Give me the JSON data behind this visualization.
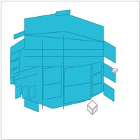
{
  "background_color": "#ffffff",
  "main_color": "#29bcd8",
  "outline_color": "#1a90aa",
  "small_outline_color": "#999999",
  "border_color": "#cccccc",
  "fig_width": 2.0,
  "fig_height": 2.0,
  "dpi": 100,
  "lw": 0.55
}
